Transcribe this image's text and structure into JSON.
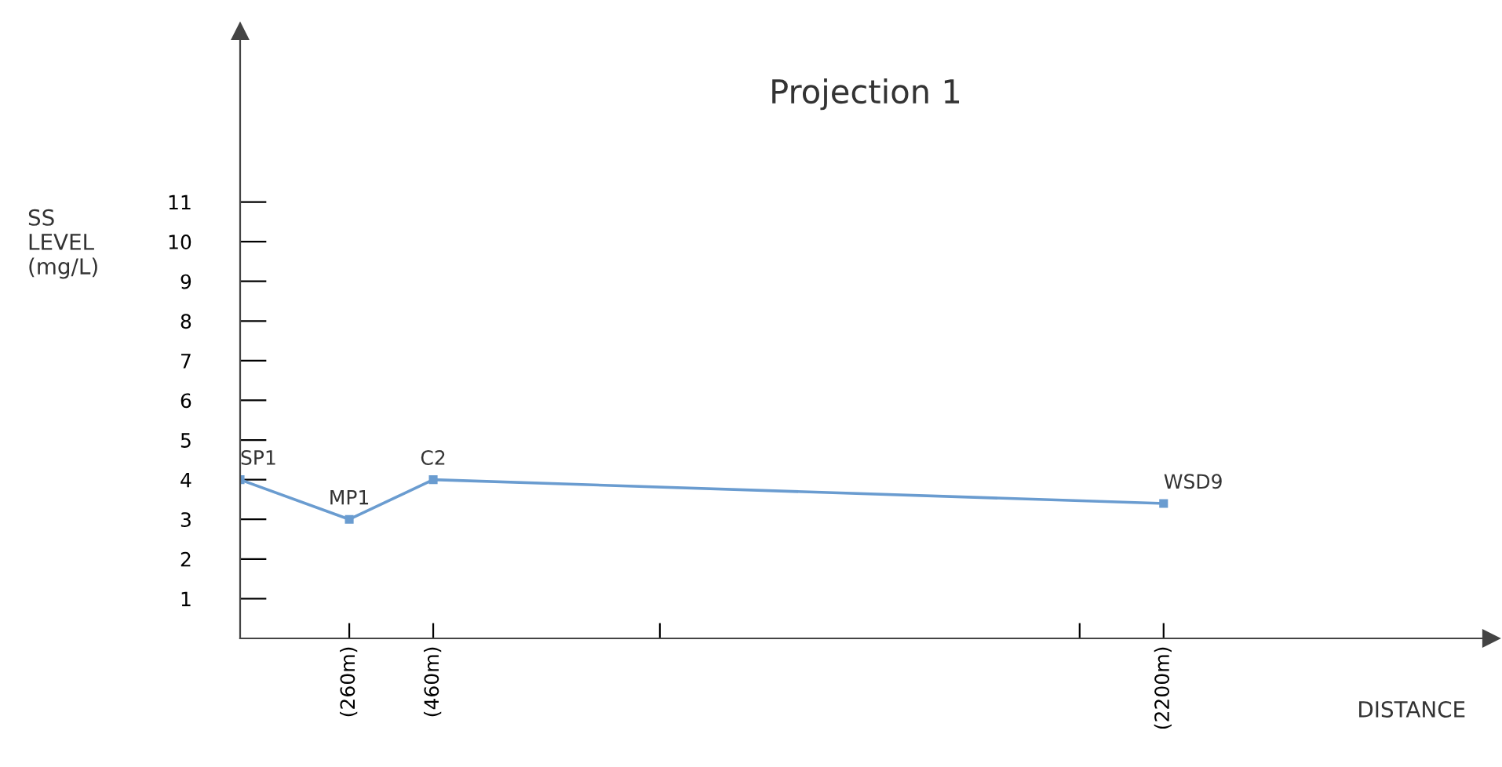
{
  "chart_data": {
    "type": "line",
    "title": "Projection 1",
    "ylabel": "SS\nLEVEL\n(mg/L)",
    "xlabel": "DISTANCE",
    "x": [
      0,
      260,
      460,
      2200
    ],
    "values": [
      4,
      3,
      4,
      3.4
    ],
    "color": "#6a9cd0",
    "marker": "square",
    "xlim": [
      0,
      2980
    ],
    "xticks": [
      {
        "value": 260,
        "label": "(260m)"
      },
      {
        "value": 460,
        "label": "(460m)"
      },
      {
        "value": 1000,
        "label": null
      },
      {
        "value": 2000,
        "label": null
      },
      {
        "value": 2200,
        "label": "(2200m)"
      }
    ],
    "ylim": [
      0,
      15.3
    ],
    "yticks": [
      1,
      2,
      3,
      4,
      5,
      6,
      7,
      8,
      9,
      10,
      11
    ],
    "grid": false,
    "annotations": [
      {
        "text": "SP1",
        "x": 0,
        "y": 4
      },
      {
        "text": "MP1",
        "x": 260,
        "y": 3
      },
      {
        "text": "C2",
        "x": 460,
        "y": 4
      },
      {
        "text": "WSD9",
        "x": 2200,
        "y": 3.4
      }
    ]
  }
}
